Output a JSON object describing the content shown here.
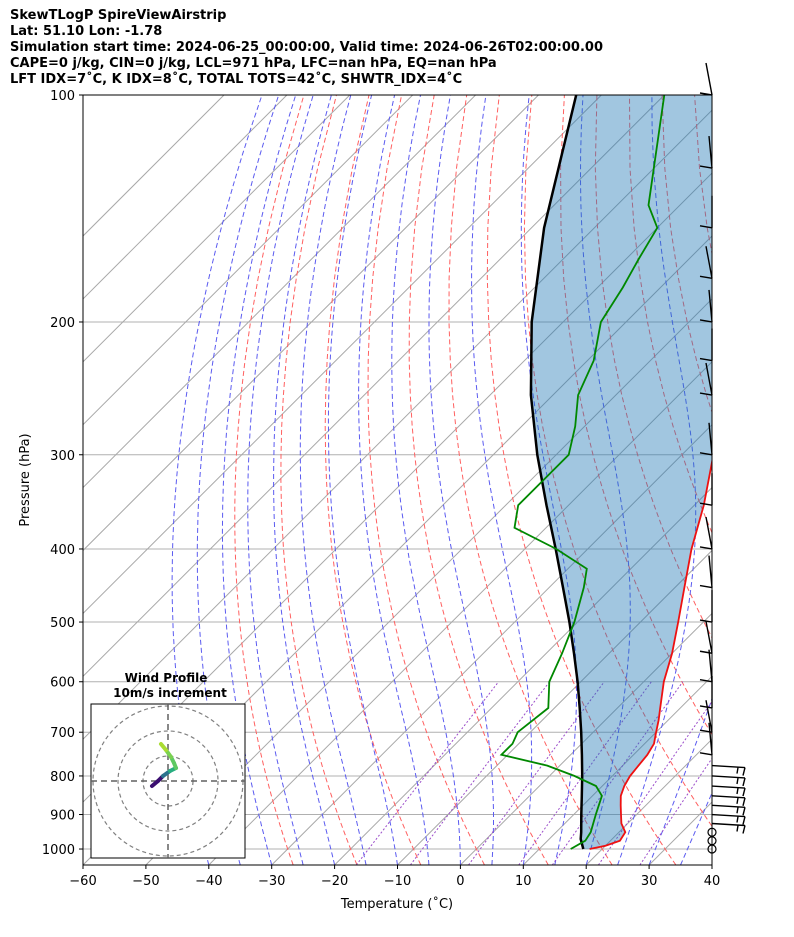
{
  "header": {
    "line1": "SkewTLogP SpireViewAirstrip",
    "line2": "Lat: 51.10   Lon: -1.78",
    "line3": "Simulation start time: 2024-06-25_00:00:00, Valid time: 2024-06-26T02:00:00.00",
    "line4": "CAPE=0 j/kg, CIN=0 j/kg, LCL=971 hPa, LFC=nan hPa, EQ=nan hPa",
    "line5": "LFT IDX=7˚C, K IDX=8˚C, TOTAL TOTS=42˚C, SHWTR_IDX=4˚C"
  },
  "chart_data": {
    "type": "line",
    "subtype": "skew-T log-P",
    "xlabel": "Temperature (˚C)",
    "ylabel": "Pressure (hPa)",
    "xlim": [
      -60,
      40
    ],
    "ylim": [
      1050,
      100
    ],
    "x_ticks": [
      -60,
      -50,
      -40,
      -30,
      -20,
      -10,
      0,
      10,
      20,
      30,
      40
    ],
    "y_ticks": [
      1000,
      900,
      800,
      700,
      600,
      500,
      400,
      300,
      200,
      100
    ],
    "series": [
      {
        "name": "temperature",
        "color": "#ee1111",
        "points": [
          [
            1000,
            18
          ],
          [
            990,
            20
          ],
          [
            975,
            21.5
          ],
          [
            950,
            21
          ],
          [
            925,
            19
          ],
          [
            900,
            17.5
          ],
          [
            875,
            16
          ],
          [
            850,
            14.5
          ],
          [
            825,
            13.5
          ],
          [
            800,
            12.8
          ],
          [
            775,
            12.5
          ],
          [
            750,
            12.2
          ],
          [
            725,
            11.5
          ],
          [
            700,
            10
          ],
          [
            675,
            8.5
          ],
          [
            650,
            6.8
          ],
          [
            600,
            3.2
          ],
          [
            550,
            0
          ],
          [
            500,
            -4
          ],
          [
            450,
            -8.5
          ],
          [
            400,
            -13.5
          ],
          [
            350,
            -18.5
          ],
          [
            300,
            -25
          ],
          [
            250,
            -32.5
          ],
          [
            220,
            -37.5
          ],
          [
            200,
            -42
          ],
          [
            190,
            -44.5
          ],
          [
            180,
            -45.5
          ],
          [
            170,
            -46.5
          ],
          [
            160,
            -47.5
          ],
          [
            150,
            -49.5
          ],
          [
            140,
            -52.5
          ],
          [
            130,
            -56
          ],
          [
            120,
            -60
          ],
          [
            110,
            -65
          ],
          [
            100,
            -70
          ]
        ]
      },
      {
        "name": "dewpoint",
        "color": "#008800",
        "points": [
          [
            1000,
            15
          ],
          [
            975,
            16
          ],
          [
            950,
            15.5
          ],
          [
            900,
            13.5
          ],
          [
            850,
            11.5
          ],
          [
            825,
            9
          ],
          [
            800,
            4
          ],
          [
            775,
            -2
          ],
          [
            750,
            -11
          ],
          [
            725,
            -11
          ],
          [
            700,
            -12
          ],
          [
            650,
            -11
          ],
          [
            600,
            -15
          ],
          [
            550,
            -17.5
          ],
          [
            500,
            -20.5
          ],
          [
            450,
            -24.5
          ],
          [
            425,
            -27
          ],
          [
            400,
            -35
          ],
          [
            375,
            -45
          ],
          [
            350,
            -48
          ],
          [
            325,
            -48
          ],
          [
            300,
            -48
          ],
          [
            275,
            -51.5
          ],
          [
            250,
            -56
          ],
          [
            225,
            -59
          ],
          [
            200,
            -64
          ],
          [
            180,
            -66
          ],
          [
            165,
            -68
          ],
          [
            150,
            -70
          ],
          [
            140,
            -75
          ],
          [
            100,
            -90
          ]
        ]
      },
      {
        "name": "parcel",
        "color": "#000000",
        "points": [
          [
            1000,
            17
          ],
          [
            970,
            15
          ],
          [
            950,
            14
          ],
          [
            900,
            11.2
          ],
          [
            850,
            8.3
          ],
          [
            800,
            5.2
          ],
          [
            750,
            1.8
          ],
          [
            700,
            -1.9
          ],
          [
            650,
            -6
          ],
          [
            600,
            -10.5
          ],
          [
            550,
            -15.6
          ],
          [
            500,
            -21.3
          ],
          [
            450,
            -27.8
          ],
          [
            400,
            -35.1
          ],
          [
            350,
            -43.5
          ],
          [
            300,
            -53
          ],
          [
            250,
            -63.5
          ],
          [
            200,
            -75
          ],
          [
            150,
            -88
          ],
          [
            100,
            -104
          ]
        ]
      }
    ],
    "wind_barbs_pressure_hPa": [
      1000,
      975,
      950,
      925,
      900,
      875,
      850,
      825,
      800,
      775,
      750,
      700,
      650,
      600,
      550,
      500,
      450,
      400,
      350,
      300,
      250,
      225,
      200,
      175,
      150,
      125,
      100
    ],
    "hodograph": {
      "title": "Wind Profile",
      "subtitle": "10m/s increment",
      "trace_colors": [
        "#3b0f70",
        "#2c728e",
        "#28ae80",
        "#5ec962",
        "#7ad151",
        "#aadc32"
      ]
    }
  }
}
